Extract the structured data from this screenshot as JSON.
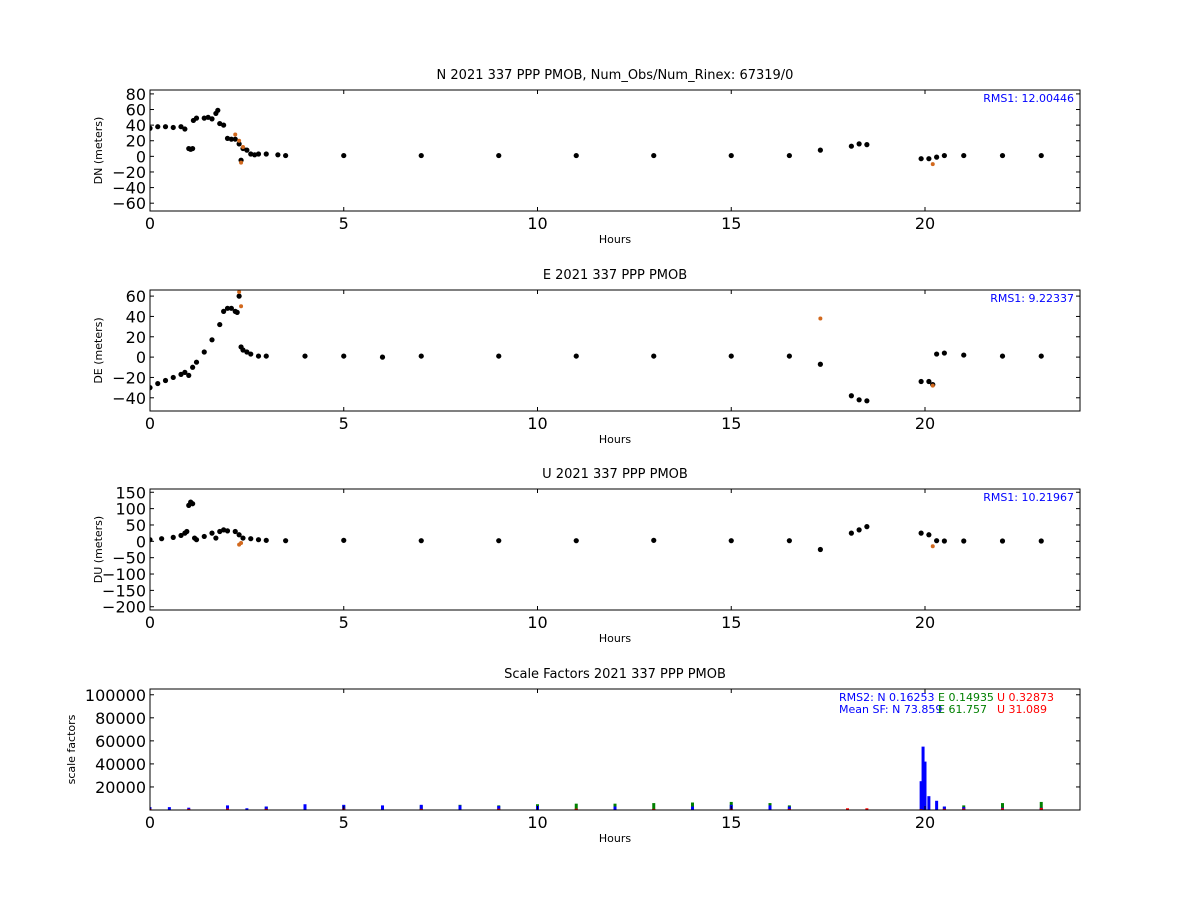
{
  "chart_data": [
    {
      "type": "scatter",
      "title": "N 2021 337 PPP  PMOB, Num_Obs/Num_Rinex: 67319/0",
      "xlabel": "Hours",
      "ylabel": "DN (meters)",
      "xlim": [
        0,
        24
      ],
      "ylim": [
        -70,
        85
      ],
      "xticks": [
        0,
        5,
        10,
        15,
        20
      ],
      "xtick_labels": [
        "0",
        "5",
        "10",
        "15",
        "20"
      ],
      "yticks": [
        80,
        60,
        40,
        20,
        0,
        -20,
        -40,
        -60
      ],
      "ytick_labels": [
        "80",
        "60",
        "40",
        "20",
        "0",
        "−20",
        "−40",
        "−60"
      ],
      "annotations": [
        "RMS1: 12.00446"
      ],
      "series": [
        {
          "color": "#000000",
          "x": [
            0.0,
            0.2,
            0.4,
            0.6,
            0.8,
            0.9,
            1.0,
            1.05,
            1.1,
            1.12,
            1.2,
            1.4,
            1.5,
            1.6,
            1.7,
            1.75,
            1.8,
            1.9,
            2.0,
            2.1,
            2.2,
            2.3,
            2.35,
            2.4,
            2.5,
            2.6,
            2.7,
            2.8,
            3.0,
            3.3,
            3.5,
            5,
            7,
            9,
            11,
            13,
            15,
            16.5,
            17.3,
            18.1,
            18.3,
            18.5,
            19.9,
            20.1,
            20.3,
            20.5,
            21,
            22,
            23
          ],
          "y": [
            36,
            38,
            38,
            37,
            38,
            35,
            10,
            9,
            10,
            46,
            49,
            49,
            50,
            48,
            55,
            59,
            42,
            40,
            23,
            22,
            22,
            16,
            -5,
            10,
            8,
            3,
            2,
            3,
            3,
            2,
            1,
            1,
            1,
            1,
            1,
            1,
            1,
            1,
            8,
            13,
            16,
            15,
            -3,
            -3,
            -1,
            1,
            1,
            1,
            1
          ]
        },
        {
          "color": "#d2691e",
          "x": [
            2.2,
            2.3,
            2.35,
            2.4,
            20.2
          ],
          "y": [
            28,
            20,
            -8,
            12,
            -10
          ]
        }
      ]
    },
    {
      "type": "scatter",
      "title": "E 2021 337 PPP  PMOB",
      "xlabel": "Hours",
      "ylabel": "DE (meters)",
      "xlim": [
        0,
        24
      ],
      "ylim": [
        -53,
        66
      ],
      "xticks": [
        0,
        5,
        10,
        15,
        20
      ],
      "xtick_labels": [
        "0",
        "5",
        "10",
        "15",
        "20"
      ],
      "yticks": [
        60,
        40,
        20,
        0,
        -20,
        -40
      ],
      "ytick_labels": [
        "60",
        "40",
        "20",
        "0",
        "−20",
        "−40"
      ],
      "annotations": [
        "RMS1:  9.22337"
      ],
      "series": [
        {
          "color": "#000000",
          "x": [
            0.0,
            0.2,
            0.4,
            0.6,
            0.8,
            0.9,
            1.0,
            1.1,
            1.2,
            1.4,
            1.6,
            1.8,
            1.9,
            2.0,
            2.1,
            2.2,
            2.25,
            2.3,
            2.35,
            2.4,
            2.5,
            2.6,
            2.8,
            3.0,
            4,
            5,
            6,
            7,
            9,
            11,
            13,
            15,
            16.5,
            17.3,
            18.1,
            18.3,
            18.5,
            19.9,
            20.1,
            20.2,
            20.3,
            20.5,
            21,
            22,
            23
          ],
          "y": [
            -30,
            -26,
            -23,
            -20,
            -17,
            -15,
            -18,
            -10,
            -5,
            5,
            17,
            32,
            45,
            48,
            48,
            45,
            44,
            60,
            10,
            7,
            5,
            3,
            1,
            1,
            1,
            1,
            0,
            1,
            1,
            1,
            1,
            1,
            1,
            -7,
            -38,
            -42,
            -43,
            -24,
            -24,
            -27,
            3,
            4,
            2,
            1,
            1
          ]
        },
        {
          "color": "#d2691e",
          "x": [
            2.3,
            2.35,
            17.3,
            20.2
          ],
          "y": [
            64,
            50,
            38,
            -28
          ]
        }
      ]
    },
    {
      "type": "scatter",
      "title": "U 2021 337 PPP  PMOB",
      "xlabel": "Hours",
      "ylabel": "DU (meters)",
      "xlim": [
        0,
        24
      ],
      "ylim": [
        -210,
        160
      ],
      "xticks": [
        0,
        5,
        10,
        15,
        20
      ],
      "xtick_labels": [
        "0",
        "5",
        "10",
        "15",
        "20"
      ],
      "yticks": [
        150,
        100,
        50,
        0,
        -50,
        -100,
        -150,
        -200
      ],
      "ytick_labels": [
        "150",
        "100",
        "50",
        "0",
        "−50",
        "−100",
        "−150",
        "−200"
      ],
      "annotations": [
        "RMS1: 10.21967"
      ],
      "series": [
        {
          "color": "#000000",
          "x": [
            0.0,
            0.3,
            0.6,
            0.8,
            0.9,
            0.95,
            1.0,
            1.05,
            1.1,
            1.15,
            1.2,
            1.4,
            1.6,
            1.7,
            1.8,
            1.9,
            2.0,
            2.2,
            2.3,
            2.4,
            2.6,
            2.8,
            3.0,
            3.5,
            5,
            7,
            9,
            11,
            13,
            15,
            16.5,
            17.3,
            18.1,
            18.3,
            18.5,
            19.9,
            20.1,
            20.3,
            20.5,
            21,
            22,
            23
          ],
          "y": [
            5,
            8,
            12,
            18,
            25,
            30,
            110,
            120,
            115,
            10,
            5,
            15,
            25,
            10,
            30,
            35,
            32,
            30,
            20,
            10,
            8,
            5,
            3,
            2,
            3,
            2,
            2,
            2,
            3,
            2,
            2,
            -25,
            25,
            35,
            45,
            25,
            20,
            2,
            1,
            1,
            1,
            1
          ]
        },
        {
          "color": "#d2691e",
          "x": [
            2.3,
            2.35,
            20.2
          ],
          "y": [
            -10,
            -5,
            -15
          ]
        }
      ]
    },
    {
      "type": "bar",
      "title": "Scale Factors 2021 337 PPP  PMOB",
      "xlabel": "Hours",
      "ylabel": "scale factors",
      "xlim": [
        0,
        24
      ],
      "ylim": [
        0,
        105000
      ],
      "xticks": [
        0,
        5,
        10,
        15,
        20
      ],
      "xtick_labels": [
        "0",
        "5",
        "10",
        "15",
        "20"
      ],
      "yticks": [
        20000,
        40000,
        60000,
        80000,
        100000
      ],
      "ytick_labels": [
        "20000",
        "40000",
        "60000",
        "80000",
        "100000"
      ],
      "annotations": [
        {
          "label": "RMS2:",
          "N": "N  0.16253",
          "E": "E  0.14935",
          "U": "U  0.32873"
        },
        {
          "label": "Mean SF:",
          "N": "N  73.859",
          "E": "E  61.757",
          "U": "U  31.089"
        }
      ],
      "series": [
        {
          "name": "E",
          "color": "#008000",
          "x": [
            3,
            4,
            5,
            6,
            7,
            8,
            9,
            10,
            11,
            12,
            13,
            14,
            15,
            16,
            16.5,
            20.5,
            21,
            22,
            23
          ],
          "y": [
            3000,
            3500,
            4000,
            3500,
            4000,
            4500,
            4000,
            5000,
            5500,
            5500,
            6000,
            6500,
            7000,
            6000,
            4000,
            3000,
            4000,
            6000,
            7000
          ]
        },
        {
          "name": "N",
          "color": "#0000ff",
          "x": [
            0,
            0.5,
            1,
            2,
            2.5,
            3,
            4,
            5,
            6,
            7,
            8,
            9,
            10,
            12,
            14,
            15,
            16,
            16.5,
            19.9,
            19.95,
            20,
            20.1,
            20.3,
            20.5,
            21,
            22,
            23
          ],
          "y": [
            2500,
            2500,
            2000,
            4000,
            1500,
            3000,
            5000,
            4500,
            4000,
            4500,
            4000,
            3500,
            3500,
            3000,
            3000,
            4500,
            4000,
            3000,
            25000,
            55000,
            42000,
            12000,
            8000,
            3000,
            2500,
            2000,
            2000
          ]
        },
        {
          "name": "U",
          "color": "#ff0000",
          "x": [
            0,
            1,
            2,
            3,
            5,
            7,
            9,
            11,
            13,
            15,
            16.5,
            18,
            18.5,
            19.9,
            20.5,
            21,
            22,
            23
          ],
          "y": [
            1000,
            1000,
            1200,
            1000,
            1200,
            1000,
            1100,
            1200,
            1000,
            1100,
            1000,
            1500,
            1500,
            800,
            1000,
            1200,
            1500,
            1800
          ]
        }
      ]
    }
  ]
}
